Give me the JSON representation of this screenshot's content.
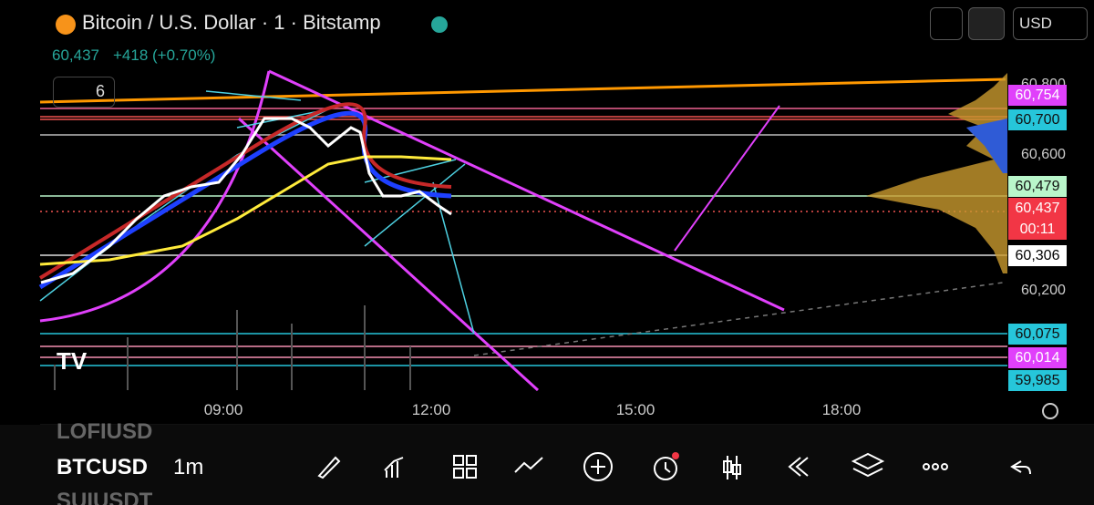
{
  "header": {
    "title": "Bitcoin / U.S. Dollar · 1 · Bitstamp",
    "price": "60,437",
    "change": "+418 (+0.70%)",
    "indicators": "6",
    "currency": "USD"
  },
  "price_axis": {
    "ticks": [
      "60,800",
      "60,600",
      "60,200"
    ],
    "labels": [
      "60,754",
      "60,700",
      "60,479",
      "60,437",
      "60,306",
      "60,075",
      "60,014",
      "59,985"
    ],
    "countdown": "00:11"
  },
  "time_axis": {
    "ticks": [
      "09:00",
      "12:00",
      "15:00",
      "18:00"
    ]
  },
  "toolbar": {
    "symbols": [
      "LOFIUSD",
      "BTCUSD",
      "SUIUSDT"
    ],
    "interval": "1m"
  }
}
